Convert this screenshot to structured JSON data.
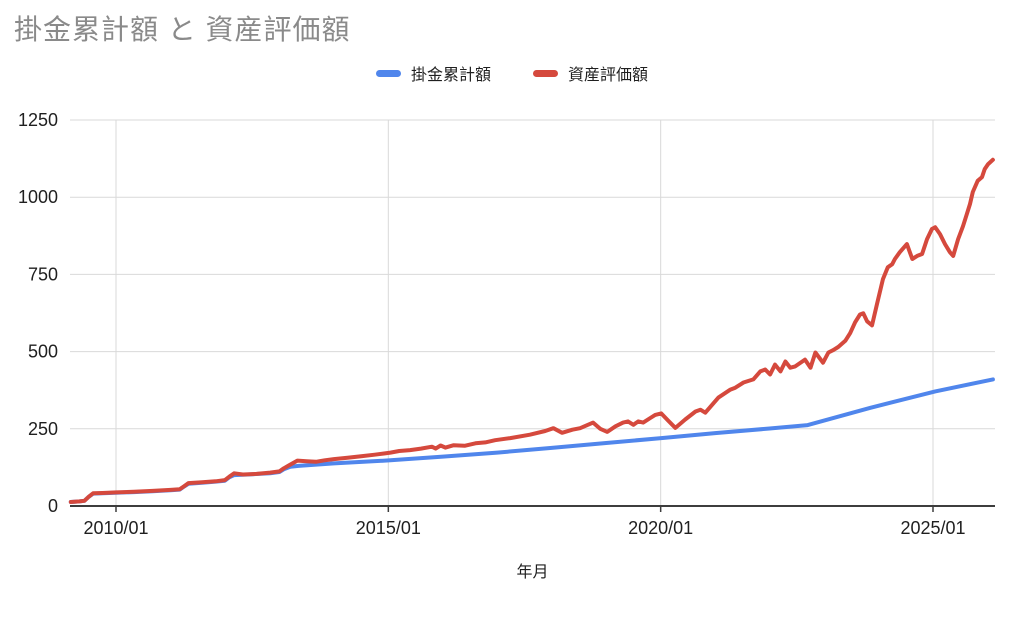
{
  "title": "掛金累計額 と 資産評価額",
  "colors": {
    "series_blue": "#5086ec",
    "series_red": "#d5493d",
    "title_gray": "#8a8a8a",
    "grid": "#d9d9d9",
    "axis": "#3d3d3d",
    "text": "#1f1f1f",
    "background": "#ffffff"
  },
  "chart_data": {
    "type": "line",
    "title": "掛金累計額 と 資産評価額",
    "xlabel": "年月",
    "ylabel": "",
    "ylim": [
      0,
      1250
    ],
    "x_range_years": [
      2009.17,
      2026.15
    ],
    "grid": true,
    "legend_position": "top",
    "y_ticks": [
      0,
      250,
      500,
      750,
      1000,
      1250
    ],
    "x_ticks": [
      {
        "year": 2010,
        "label": "2010/01"
      },
      {
        "year": 2015,
        "label": "2015/01"
      },
      {
        "year": 2020,
        "label": "2020/01"
      },
      {
        "year": 2025,
        "label": "2025/01"
      }
    ],
    "series": [
      {
        "name": "掛金累計額",
        "color": "#5086ec",
        "points": [
          [
            2009.17,
            13
          ],
          [
            2009.33,
            15
          ],
          [
            2009.42,
            17
          ],
          [
            2009.5,
            30
          ],
          [
            2009.58,
            40
          ],
          [
            2009.75,
            41
          ],
          [
            2010.0,
            43
          ],
          [
            2010.33,
            45
          ],
          [
            2010.67,
            48
          ],
          [
            2011.0,
            51
          ],
          [
            2011.17,
            53
          ],
          [
            2011.25,
            63
          ],
          [
            2011.33,
            72
          ],
          [
            2011.58,
            75
          ],
          [
            2011.83,
            79
          ],
          [
            2012.0,
            82
          ],
          [
            2012.08,
            93
          ],
          [
            2012.17,
            100
          ],
          [
            2012.42,
            102
          ],
          [
            2012.83,
            106
          ],
          [
            2013.0,
            110
          ],
          [
            2013.08,
            119
          ],
          [
            2013.2,
            127
          ],
          [
            2013.35,
            130
          ],
          [
            2014.0,
            138
          ],
          [
            2015.04,
            148
          ],
          [
            2016.0,
            160
          ],
          [
            2017.0,
            173
          ],
          [
            2018.0,
            188
          ],
          [
            2019.0,
            204
          ],
          [
            2020.01,
            220
          ],
          [
            2021.0,
            236
          ],
          [
            2022.0,
            251
          ],
          [
            2022.7,
            262
          ],
          [
            2023.85,
            318
          ],
          [
            2025.04,
            371
          ],
          [
            2026.1,
            410
          ]
        ]
      },
      {
        "name": "資産評価額",
        "color": "#d5493d",
        "points": [
          [
            2009.17,
            13
          ],
          [
            2009.33,
            15
          ],
          [
            2009.42,
            17
          ],
          [
            2009.5,
            30
          ],
          [
            2009.58,
            41
          ],
          [
            2009.75,
            42
          ],
          [
            2010.0,
            44
          ],
          [
            2010.33,
            46
          ],
          [
            2010.67,
            49
          ],
          [
            2011.0,
            52
          ],
          [
            2011.17,
            54
          ],
          [
            2011.25,
            64
          ],
          [
            2011.33,
            74
          ],
          [
            2011.58,
            77
          ],
          [
            2011.83,
            80
          ],
          [
            2012.0,
            84
          ],
          [
            2012.08,
            95
          ],
          [
            2012.17,
            106
          ],
          [
            2012.33,
            102
          ],
          [
            2012.58,
            104
          ],
          [
            2012.83,
            108
          ],
          [
            2013.0,
            112
          ],
          [
            2013.08,
            122
          ],
          [
            2013.17,
            131
          ],
          [
            2013.33,
            147
          ],
          [
            2013.5,
            145
          ],
          [
            2013.67,
            143
          ],
          [
            2013.83,
            148
          ],
          [
            2014.0,
            152
          ],
          [
            2014.25,
            156
          ],
          [
            2014.5,
            161
          ],
          [
            2014.75,
            166
          ],
          [
            2014.92,
            170
          ],
          [
            2015.04,
            173
          ],
          [
            2015.2,
            178
          ],
          [
            2015.4,
            181
          ],
          [
            2015.6,
            186
          ],
          [
            2015.8,
            192
          ],
          [
            2015.87,
            186
          ],
          [
            2015.96,
            196
          ],
          [
            2016.05,
            189
          ],
          [
            2016.2,
            197
          ],
          [
            2016.4,
            195
          ],
          [
            2016.6,
            203
          ],
          [
            2016.78,
            206
          ],
          [
            2016.96,
            213
          ],
          [
            2017.24,
            220
          ],
          [
            2017.6,
            231
          ],
          [
            2017.88,
            243
          ],
          [
            2018.03,
            252
          ],
          [
            2018.19,
            237
          ],
          [
            2018.38,
            247
          ],
          [
            2018.52,
            252
          ],
          [
            2018.76,
            270
          ],
          [
            2018.89,
            250
          ],
          [
            2019.02,
            240
          ],
          [
            2019.17,
            258
          ],
          [
            2019.31,
            270
          ],
          [
            2019.4,
            274
          ],
          [
            2019.5,
            263
          ],
          [
            2019.59,
            274
          ],
          [
            2019.68,
            270
          ],
          [
            2019.81,
            285
          ],
          [
            2019.9,
            295
          ],
          [
            2020.01,
            300
          ],
          [
            2020.14,
            276
          ],
          [
            2020.27,
            253
          ],
          [
            2020.45,
            280
          ],
          [
            2020.64,
            306
          ],
          [
            2020.73,
            312
          ],
          [
            2020.82,
            302
          ],
          [
            2021.06,
            351
          ],
          [
            2021.28,
            377
          ],
          [
            2021.37,
            383
          ],
          [
            2021.52,
            400
          ],
          [
            2021.7,
            410
          ],
          [
            2021.83,
            436
          ],
          [
            2021.92,
            442
          ],
          [
            2022.01,
            426
          ],
          [
            2022.1,
            458
          ],
          [
            2022.2,
            436
          ],
          [
            2022.29,
            468
          ],
          [
            2022.38,
            448
          ],
          [
            2022.47,
            452
          ],
          [
            2022.65,
            474
          ],
          [
            2022.75,
            448
          ],
          [
            2022.84,
            497
          ],
          [
            2022.98,
            464
          ],
          [
            2023.08,
            497
          ],
          [
            2023.17,
            505
          ],
          [
            2023.26,
            515
          ],
          [
            2023.39,
            535
          ],
          [
            2023.48,
            560
          ],
          [
            2023.57,
            595
          ],
          [
            2023.66,
            620
          ],
          [
            2023.72,
            624
          ],
          [
            2023.79,
            598
          ],
          [
            2023.88,
            585
          ],
          [
            2023.97,
            653
          ],
          [
            2024.08,
            734
          ],
          [
            2024.17,
            773
          ],
          [
            2024.25,
            783
          ],
          [
            2024.3,
            800
          ],
          [
            2024.39,
            822
          ],
          [
            2024.52,
            848
          ],
          [
            2024.62,
            800
          ],
          [
            2024.71,
            810
          ],
          [
            2024.8,
            816
          ],
          [
            2024.89,
            864
          ],
          [
            2024.98,
            897
          ],
          [
            2025.04,
            903
          ],
          [
            2025.13,
            880
          ],
          [
            2025.22,
            848
          ],
          [
            2025.31,
            822
          ],
          [
            2025.37,
            810
          ],
          [
            2025.46,
            864
          ],
          [
            2025.55,
            906
          ],
          [
            2025.62,
            945
          ],
          [
            2025.68,
            978
          ],
          [
            2025.73,
            1017
          ],
          [
            2025.82,
            1053
          ],
          [
            2025.9,
            1065
          ],
          [
            2025.95,
            1091
          ],
          [
            2026.01,
            1107
          ],
          [
            2026.1,
            1121
          ]
        ]
      }
    ]
  }
}
